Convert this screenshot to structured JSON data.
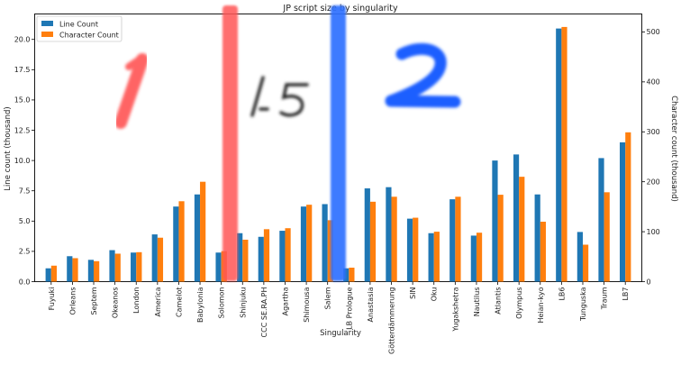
{
  "chart_data": {
    "type": "bar",
    "title": "JP script size by singularity",
    "xlabel": "Singularity",
    "ylabel_left": "Line count (thousand)",
    "ylabel_right": "Character count (thousand)",
    "ylim_left": [
      0,
      22.1
    ],
    "ylim_right": [
      0,
      536
    ],
    "yticks_left": [
      "0.0",
      "2.5",
      "5.0",
      "7.5",
      "10.0",
      "12.5",
      "15.0",
      "17.5",
      "20.0"
    ],
    "yticks_right": [
      "0",
      "100",
      "200",
      "300",
      "400",
      "500"
    ],
    "legend_position": "top-left",
    "categories": [
      "Fuyuki",
      "Orleans",
      "Septem",
      "Okeanos",
      "London",
      "America",
      "Camelot",
      "Babylonia",
      "Solomon",
      "Shinjuku",
      "CCC SE.RA.PH",
      "Agartha",
      "Shimousa",
      "Salem",
      "LB Prologue",
      "Anastasia",
      "Götterdämmerung",
      "SIN",
      "Oku",
      "Yugakshetra",
      "Nautilus",
      "Atlantis",
      "Olympus",
      "Heian-kyo",
      "LB6",
      "Tunguska",
      "Traum",
      "LB7"
    ],
    "series": [
      {
        "name": "Line Count",
        "axis": "left",
        "color": "#1f77b4",
        "values": [
          1.1,
          2.1,
          1.8,
          2.6,
          2.4,
          3.9,
          6.2,
          7.2,
          2.4,
          4.0,
          3.7,
          4.2,
          6.2,
          6.4,
          1.1,
          7.7,
          7.8,
          5.2,
          4.0,
          6.8,
          3.8,
          10.0,
          10.5,
          7.2,
          20.9,
          4.1,
          10.2,
          11.5
        ]
      },
      {
        "name": "Character Count",
        "axis": "right",
        "color": "#ff7f0e",
        "values": [
          32,
          47,
          41,
          56,
          59,
          88,
          161,
          200,
          61,
          84,
          105,
          107,
          154,
          123,
          28,
          160,
          170,
          128,
          100,
          170,
          98,
          174,
          210,
          120,
          510,
          74,
          179,
          299
        ]
      }
    ],
    "annotations": [
      {
        "kind": "marker-stroke",
        "color": "#ff4a4a",
        "text": "1",
        "over_category": "Orleans"
      },
      {
        "kind": "marker-bar",
        "color": "#ff5555",
        "over_category": "Solomon"
      },
      {
        "kind": "handwriting",
        "color": "#222222",
        "text": "1.5",
        "over_category": "Agartha"
      },
      {
        "kind": "marker-bar",
        "color": "#2f6fff",
        "over_category": "Salem"
      },
      {
        "kind": "marker-stroke",
        "color": "#1f5fff",
        "text": "2",
        "over_category": "Anastasia"
      }
    ]
  }
}
